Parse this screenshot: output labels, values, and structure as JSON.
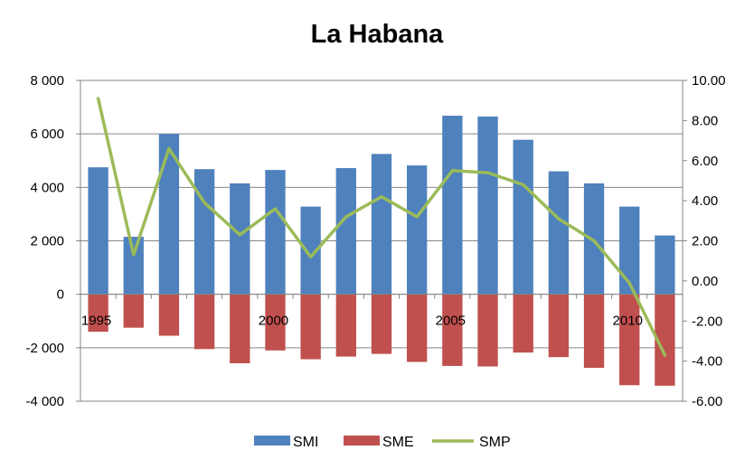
{
  "chart_data": {
    "type": "bar",
    "title": "La Habana",
    "x": [
      1995,
      1996,
      1997,
      1998,
      1999,
      2000,
      2001,
      2002,
      2003,
      2004,
      2005,
      2006,
      2007,
      2008,
      2009,
      2010,
      2011
    ],
    "x_tick_labels": [
      "1995",
      "2000",
      "2005",
      "2010"
    ],
    "x_tick_years": [
      1995,
      2000,
      2005,
      2010
    ],
    "series": [
      {
        "name": "SMI",
        "type": "bar",
        "axis": "left",
        "color": "#4f81bd",
        "values": [
          4750,
          2150,
          6000,
          4680,
          4150,
          4650,
          3280,
          4720,
          5250,
          4820,
          6680,
          6650,
          5780,
          4600,
          4150,
          3280,
          2200
        ]
      },
      {
        "name": "SME",
        "type": "bar",
        "axis": "left",
        "color": "#c0504d",
        "values": [
          -1400,
          -1250,
          -1550,
          -2050,
          -2580,
          -2100,
          -2430,
          -2330,
          -2230,
          -2530,
          -2680,
          -2700,
          -2180,
          -2350,
          -2750,
          -3400,
          -3420
        ]
      },
      {
        "name": "SMP",
        "type": "line",
        "axis": "right",
        "color": "#9bbb59",
        "values": [
          9.1,
          1.3,
          6.6,
          3.9,
          2.3,
          3.6,
          1.2,
          3.2,
          4.2,
          3.2,
          5.5,
          5.4,
          4.8,
          3.1,
          2.0,
          -0.1,
          -3.7
        ]
      }
    ],
    "left_axis": {
      "ylim": [
        -4000,
        8000
      ],
      "ticks": [
        8000,
        6000,
        4000,
        2000,
        0,
        -2000,
        -4000
      ],
      "tick_labels": [
        "8 000",
        "6 000",
        "4 000",
        "2 000",
        "0",
        "-2 000",
        "-4 000"
      ]
    },
    "right_axis": {
      "ylim": [
        -6,
        10
      ],
      "ticks": [
        10,
        8,
        6,
        4,
        2,
        0,
        -2,
        -4,
        -6
      ],
      "tick_labels": [
        "10.00",
        "8.00",
        "6.00",
        "4.00",
        "2.00",
        "0.00",
        "-2.00",
        "-4.00",
        "-6.00"
      ]
    },
    "grid": true,
    "legend_position": "bottom"
  }
}
